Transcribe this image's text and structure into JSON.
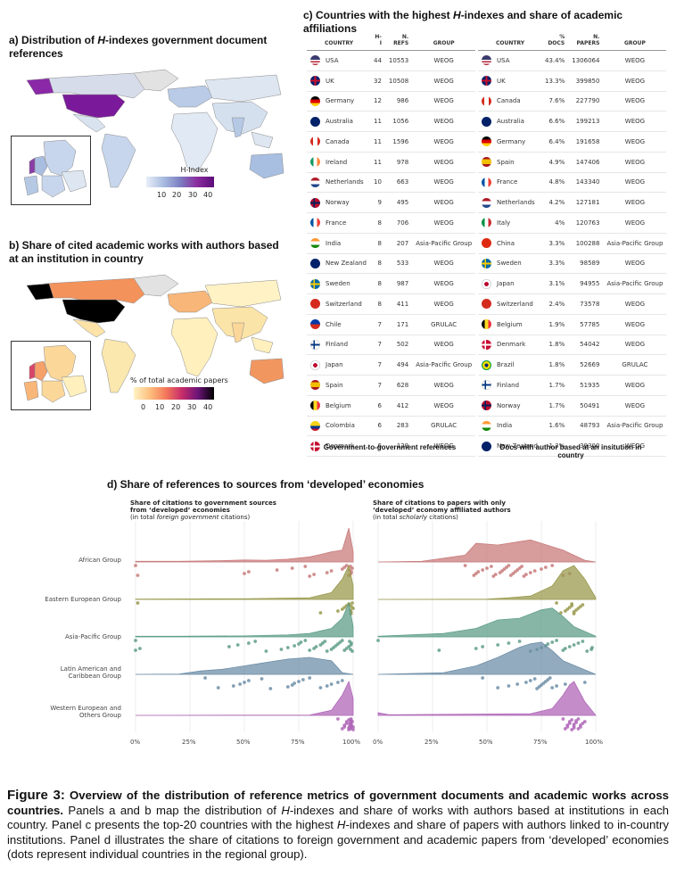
{
  "panel_a": {
    "title_pre": "a) Distribution of ",
    "title_em": "H",
    "title_post": "-indexes government document references",
    "legend_title": "H-Index",
    "legend_ticks": [
      "10",
      "20",
      "30",
      "40"
    ]
  },
  "panel_b": {
    "title": "b) Share of cited academic works with authors based at an institution in country",
    "legend_title": "% of total academic papers",
    "legend_ticks": [
      "0",
      "10",
      "20",
      "30",
      "40"
    ]
  },
  "panel_c": {
    "title_pre": "c) Countries with the highest ",
    "title_em": "H",
    "title_post": "-indexes and share of academic affiliations",
    "left_table": {
      "headers": [
        "COUNTRY",
        "H-I",
        "N. REFS",
        "GROUP"
      ],
      "rows": [
        {
          "flag": "us",
          "country": "USA",
          "hi": "44",
          "refs": "10553",
          "group": "WEOG"
        },
        {
          "flag": "uk",
          "country": "UK",
          "hi": "32",
          "refs": "10508",
          "group": "WEOG"
        },
        {
          "flag": "de",
          "country": "Germany",
          "hi": "12",
          "refs": "986",
          "group": "WEOG"
        },
        {
          "flag": "au",
          "country": "Australia",
          "hi": "11",
          "refs": "1056",
          "group": "WEOG"
        },
        {
          "flag": "ca",
          "country": "Canada",
          "hi": "11",
          "refs": "1596",
          "group": "WEOG"
        },
        {
          "flag": "ie",
          "country": "Ireland",
          "hi": "11",
          "refs": "978",
          "group": "WEOG"
        },
        {
          "flag": "nl",
          "country": "Netherlands",
          "hi": "10",
          "refs": "663",
          "group": "WEOG"
        },
        {
          "flag": "no",
          "country": "Norway",
          "hi": "9",
          "refs": "495",
          "group": "WEOG"
        },
        {
          "flag": "fr",
          "country": "France",
          "hi": "8",
          "refs": "706",
          "group": "WEOG"
        },
        {
          "flag": "in",
          "country": "India",
          "hi": "8",
          "refs": "207",
          "group": "Asia-Pacific Group"
        },
        {
          "flag": "nz",
          "country": "New Zealand",
          "hi": "8",
          "refs": "533",
          "group": "WEOG"
        },
        {
          "flag": "se",
          "country": "Sweden",
          "hi": "8",
          "refs": "987",
          "group": "WEOG"
        },
        {
          "flag": "ch",
          "country": "Switzerland",
          "hi": "8",
          "refs": "411",
          "group": "WEOG"
        },
        {
          "flag": "cl",
          "country": "Chile",
          "hi": "7",
          "refs": "171",
          "group": "GRULAC"
        },
        {
          "flag": "fi",
          "country": "Finland",
          "hi": "7",
          "refs": "502",
          "group": "WEOG"
        },
        {
          "flag": "jp",
          "country": "Japan",
          "hi": "7",
          "refs": "494",
          "group": "Asia-Pacific Group"
        },
        {
          "flag": "es",
          "country": "Spain",
          "hi": "7",
          "refs": "628",
          "group": "WEOG"
        },
        {
          "flag": "be",
          "country": "Belgium",
          "hi": "6",
          "refs": "412",
          "group": "WEOG"
        },
        {
          "flag": "co",
          "country": "Colombia",
          "hi": "6",
          "refs": "283",
          "group": "GRULAC"
        },
        {
          "flag": "dk",
          "country": "Denmark",
          "hi": "6",
          "refs": "129",
          "group": "WEOG"
        }
      ],
      "caption": "Government-to-government references"
    },
    "right_table": {
      "headers": [
        "COUNTRY",
        "% DOCS",
        "N. PAPERS",
        "GROUP"
      ],
      "rows": [
        {
          "flag": "us",
          "country": "USA",
          "pct": "43.4%",
          "papers": "1306064",
          "group": "WEOG"
        },
        {
          "flag": "uk",
          "country": "UK",
          "pct": "13.3%",
          "papers": "399850",
          "group": "WEOG"
        },
        {
          "flag": "ca",
          "country": "Canada",
          "pct": "7.6%",
          "papers": "227790",
          "group": "WEOG"
        },
        {
          "flag": "au",
          "country": "Australia",
          "pct": "6.6%",
          "papers": "199213",
          "group": "WEOG"
        },
        {
          "flag": "de",
          "country": "Germany",
          "pct": "6.4%",
          "papers": "191658",
          "group": "WEOG"
        },
        {
          "flag": "es",
          "country": "Spain",
          "pct": "4.9%",
          "papers": "147406",
          "group": "WEOG"
        },
        {
          "flag": "fr",
          "country": "France",
          "pct": "4.8%",
          "papers": "143340",
          "group": "WEOG"
        },
        {
          "flag": "nl",
          "country": "Netherlands",
          "pct": "4.2%",
          "papers": "127181",
          "group": "WEOG"
        },
        {
          "flag": "it",
          "country": "Italy",
          "pct": "4%",
          "papers": "120763",
          "group": "WEOG"
        },
        {
          "flag": "cn",
          "country": "China",
          "pct": "3.3%",
          "papers": "100288",
          "group": "Asia-Pacific Group"
        },
        {
          "flag": "se",
          "country": "Sweden",
          "pct": "3.3%",
          "papers": "98589",
          "group": "WEOG"
        },
        {
          "flag": "jp",
          "country": "Japan",
          "pct": "3.1%",
          "papers": "94955",
          "group": "Asia-Pacific Group"
        },
        {
          "flag": "ch",
          "country": "Switzerland",
          "pct": "2.4%",
          "papers": "73578",
          "group": "WEOG"
        },
        {
          "flag": "be",
          "country": "Belgium",
          "pct": "1.9%",
          "papers": "57785",
          "group": "WEOG"
        },
        {
          "flag": "dk",
          "country": "Denmark",
          "pct": "1.8%",
          "papers": "54042",
          "group": "WEOG"
        },
        {
          "flag": "br",
          "country": "Brazil",
          "pct": "1.8%",
          "papers": "52669",
          "group": "GRULAC"
        },
        {
          "flag": "fi",
          "country": "Finland",
          "pct": "1.7%",
          "papers": "51935",
          "group": "WEOG"
        },
        {
          "flag": "no",
          "country": "Norway",
          "pct": "1.7%",
          "papers": "50491",
          "group": "WEOG"
        },
        {
          "flag": "in",
          "country": "India",
          "pct": "1.6%",
          "papers": "48793",
          "group": "Asia-Pacific Group"
        },
        {
          "flag": "nz",
          "country": "New Zealand",
          "pct": "1.3%",
          "papers": "39300",
          "group": "WEOG"
        }
      ],
      "caption": "Docs with author based at an insitution in country"
    }
  },
  "panel_d": {
    "title": "d) Share of references to sources from ‘developed’ economies",
    "left_title_1": "Share of citations to government sources",
    "left_title_2": "from ‘developed’ economies",
    "left_title_3a": "(in total ",
    "left_title_3em": "foreign government",
    "left_title_3b": " citations)",
    "right_title_1": "Share of citations to papers with only",
    "right_title_2": "‘developed’ economy affiliated authors",
    "right_title_3a": "(in total ",
    "right_title_3em": "scholarly",
    "right_title_3b": " citations)",
    "groups": [
      "African Group",
      "Eastern European Group",
      "Asia-Pacific Group",
      "Latin American and Caribbean Group",
      "Western European and Others Group"
    ],
    "group_label_lines": [
      [
        "African Group"
      ],
      [
        "Eastern European Group"
      ],
      [
        "Asia-Pacific Group"
      ],
      [
        "Latin American and",
        "Caribbean Group"
      ],
      [
        "Western European and",
        "Others Group"
      ]
    ],
    "x_ticks": [
      "0%",
      "25%",
      "50%",
      "75%",
      "100%"
    ],
    "colors": [
      "#c97b7b",
      "#9a9a4e",
      "#5f9e8a",
      "#6f8fa8",
      "#b067b8"
    ]
  },
  "chart_data": [
    {
      "type": "area",
      "title": "Share of citations to government sources from ‘developed’ economies (in total foreign government citations)",
      "xlim": [
        0,
        100
      ],
      "x_unit": "%",
      "categories": [
        "African Group",
        "Eastern European Group",
        "Asia-Pacific Group",
        "Latin American and Caribbean Group",
        "Western European and Others Group"
      ],
      "series": [
        {
          "name": "African Group",
          "x": [
            0,
            20,
            40,
            50,
            60,
            70,
            80,
            85,
            90,
            95,
            98,
            100
          ],
          "density": [
            0.02,
            0.02,
            0.04,
            0.06,
            0.05,
            0.08,
            0.15,
            0.22,
            0.3,
            0.35,
            1.0,
            0.3
          ],
          "points": [
            0,
            1,
            50,
            52,
            65,
            72,
            78,
            80,
            82,
            88,
            90,
            95,
            96,
            97,
            98,
            99,
            100,
            100,
            100,
            100
          ]
        },
        {
          "name": "Eastern European Group",
          "x": [
            0,
            50,
            80,
            90,
            95,
            98,
            100
          ],
          "density": [
            0.01,
            0.02,
            0.05,
            0.2,
            0.6,
            1.0,
            0.4
          ],
          "points": [
            1,
            85,
            93,
            95,
            96,
            97,
            98,
            99,
            99,
            100,
            100,
            100,
            100,
            100
          ]
        },
        {
          "name": "Asia-Pacific Group",
          "x": [
            0,
            20,
            50,
            70,
            80,
            90,
            95,
            98,
            100
          ],
          "density": [
            0.02,
            0.02,
            0.03,
            0.06,
            0.1,
            0.25,
            0.55,
            1.0,
            0.3
          ],
          "points": [
            0,
            0,
            2,
            43,
            47,
            52,
            55,
            60,
            67,
            70,
            73,
            75,
            76,
            78,
            80,
            82,
            83,
            85,
            86,
            87,
            88,
            90,
            91,
            92,
            93,
            94,
            95,
            96,
            97,
            98,
            99,
            100,
            100,
            100,
            100
          ]
        },
        {
          "name": "Latin American and Caribbean Group",
          "x": [
            0,
            20,
            30,
            40,
            50,
            60,
            70,
            80,
            90,
            95,
            100
          ],
          "density": [
            0.0,
            0.01,
            0.1,
            0.15,
            0.25,
            0.35,
            0.45,
            0.5,
            0.4,
            0.05,
            0.0
          ],
          "points": [
            32,
            38,
            45,
            48,
            50,
            52,
            58,
            62,
            70,
            72,
            73,
            75,
            77,
            80,
            85,
            88,
            90,
            93,
            95
          ]
        },
        {
          "name": "Western European and Others Group",
          "x": [
            0,
            80,
            90,
            95,
            98,
            100
          ],
          "density": [
            0.0,
            0.01,
            0.15,
            0.6,
            1.0,
            0.5
          ],
          "points": [
            93,
            95,
            96,
            96,
            97,
            97,
            98,
            98,
            98,
            99,
            99,
            99,
            99,
            99,
            100,
            100,
            100,
            100,
            100,
            100,
            100,
            100,
            100
          ]
        }
      ]
    },
    {
      "type": "area",
      "title": "Share of citations to papers with only ‘developed’ economy affiliated authors (in total scholarly citations)",
      "xlim": [
        0,
        100
      ],
      "x_unit": "%",
      "categories": [
        "African Group",
        "Eastern European Group",
        "Asia-Pacific Group",
        "Latin American and Caribbean Group",
        "Western European and Others Group"
      ],
      "series": [
        {
          "name": "African Group",
          "x": [
            0,
            20,
            40,
            45,
            55,
            65,
            70,
            75,
            85,
            95,
            100
          ],
          "density": [
            0.0,
            0.02,
            0.2,
            0.55,
            0.5,
            0.6,
            0.65,
            0.55,
            0.35,
            0.05,
            0.0
          ],
          "points": [
            40,
            44,
            45,
            46,
            48,
            50,
            52,
            53,
            54,
            56,
            57,
            58,
            59,
            60,
            61,
            62,
            63,
            64,
            65,
            66,
            67,
            68,
            70,
            72,
            75,
            77,
            80,
            85,
            88
          ]
        },
        {
          "name": "Eastern European Group",
          "x": [
            0,
            50,
            60,
            70,
            80,
            85,
            90,
            95,
            100
          ],
          "density": [
            0.0,
            0.01,
            0.05,
            0.1,
            0.4,
            0.85,
            1.0,
            0.6,
            0.05
          ],
          "points": [
            82,
            84,
            86,
            87,
            88,
            89,
            89,
            90,
            90,
            91,
            92,
            93,
            94
          ]
        },
        {
          "name": "Asia-Pacific Group",
          "x": [
            0,
            30,
            45,
            55,
            65,
            75,
            80,
            85,
            90,
            100
          ],
          "density": [
            0.02,
            0.1,
            0.25,
            0.5,
            0.55,
            0.8,
            0.85,
            0.6,
            0.3,
            0.02
          ],
          "points": [
            0,
            28,
            45,
            48,
            55,
            60,
            65,
            70,
            73,
            75,
            77,
            78,
            80,
            82,
            85,
            86,
            88,
            90,
            92,
            94,
            96,
            98,
            100
          ]
        },
        {
          "name": "Latin American and Caribbean Group",
          "x": [
            0,
            30,
            45,
            55,
            65,
            70,
            75,
            80,
            85,
            100
          ],
          "density": [
            0.0,
            0.05,
            0.25,
            0.5,
            0.8,
            0.9,
            0.95,
            0.7,
            0.4,
            0.0
          ],
          "points": [
            48,
            55,
            60,
            64,
            68,
            70,
            72,
            73,
            74,
            75,
            76,
            77,
            78,
            79,
            80,
            82,
            86,
            95
          ]
        },
        {
          "name": "Western European and Others Group",
          "x": [
            0,
            5,
            70,
            80,
            85,
            88,
            90,
            95,
            100
          ],
          "density": [
            0.08,
            0.02,
            0.05,
            0.2,
            0.6,
            0.9,
            1.0,
            0.4,
            0.0
          ],
          "points": [
            85,
            86,
            87,
            87,
            88,
            88,
            89,
            89,
            90,
            90,
            90,
            91,
            91,
            92,
            92,
            93,
            93,
            94,
            95
          ]
        }
      ]
    }
  ],
  "caption": {
    "fig_label": "Figure 3:",
    "bold_text": " Overview of the distribution of reference metrics of government documents and academic works across countries.",
    "body_1": " Panels a and b map the distribution of ",
    "body_em_1": "H",
    "body_2": "-indexes and share of works with authors based at institutions in each country. Panel c presents the top-20 countries with the highest ",
    "body_em_2": "H",
    "body_3": "-indexes and share of papers with authors linked to in-country institutions. Panel d illustrates the share of citations to foreign government and academic papers from ‘developed’ economies (dots represent individual countries in the regional group)."
  }
}
